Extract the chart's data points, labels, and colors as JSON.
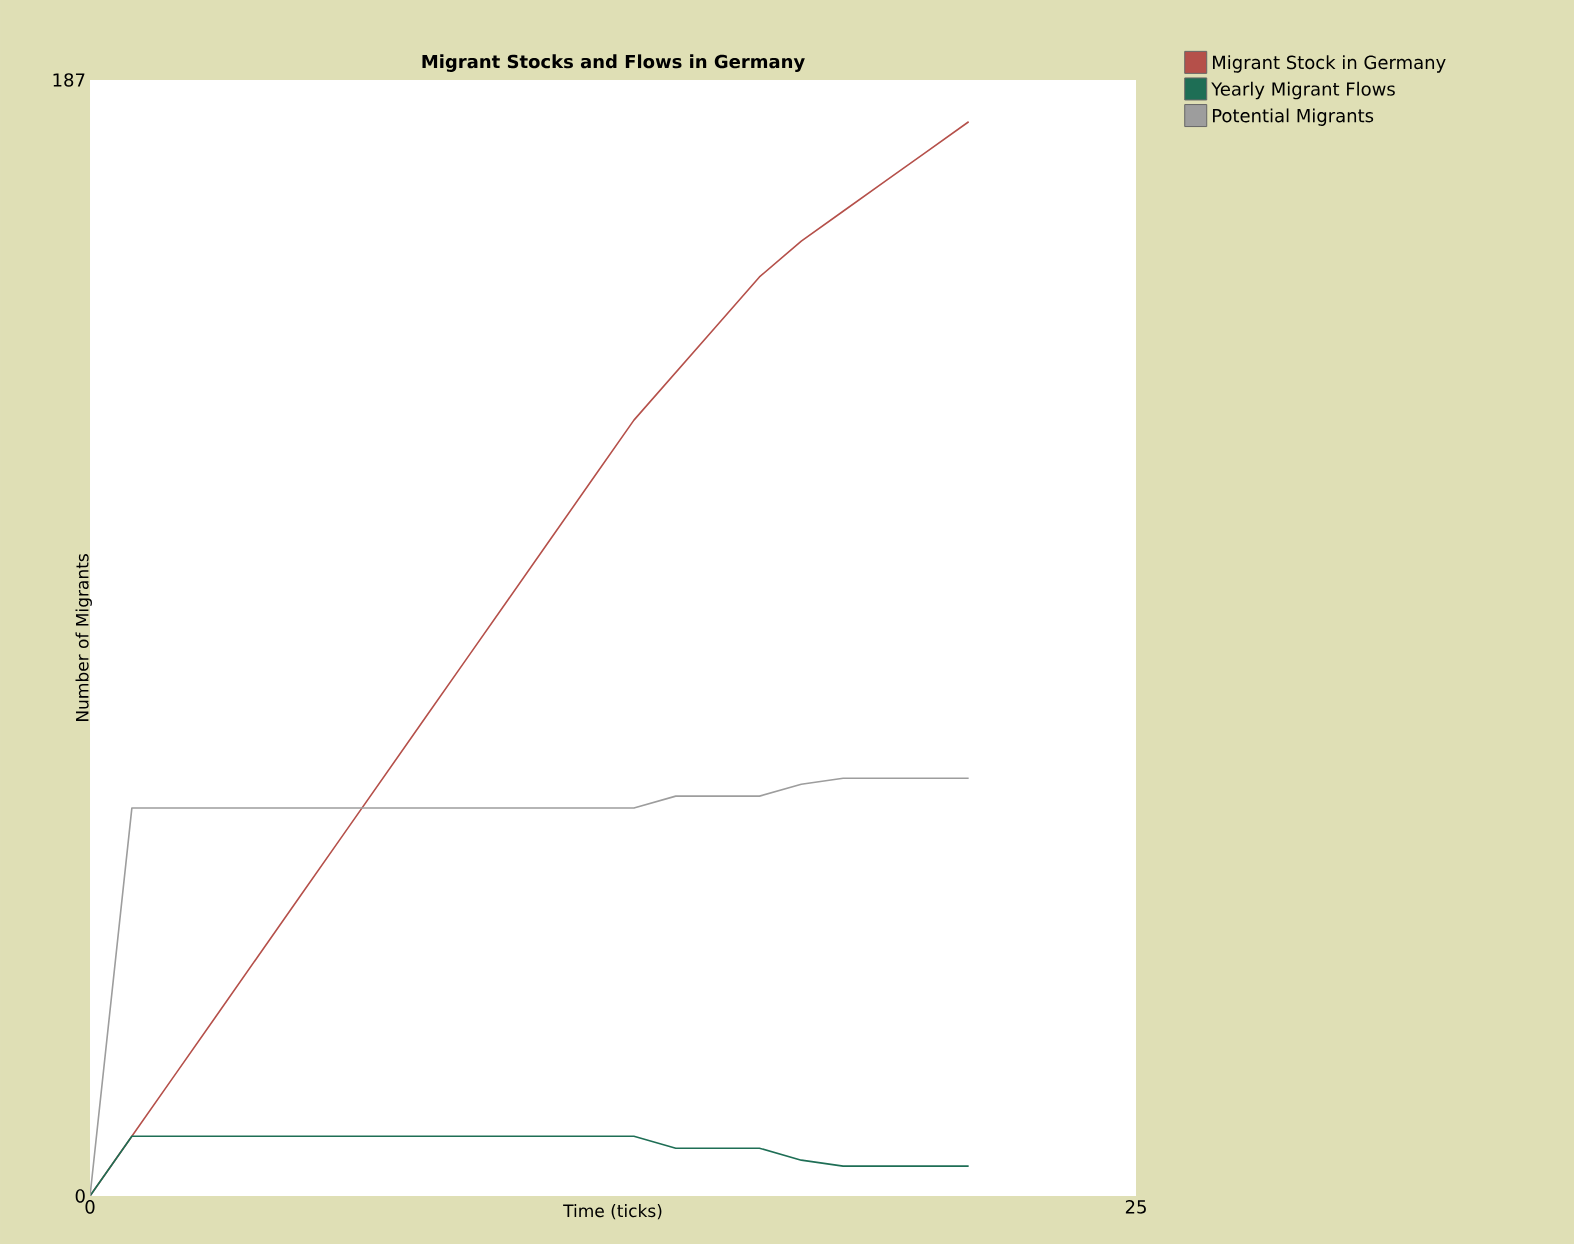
{
  "chart_data": {
    "type": "line",
    "title": "Migrant Stocks and Flows in Germany",
    "xlabel": "Time (ticks)",
    "ylabel": "Number of Migrants",
    "xlim": [
      0,
      25
    ],
    "ylim": [
      0,
      187
    ],
    "xticks": [
      0,
      25
    ],
    "yticks": [
      0,
      187
    ],
    "grid": false,
    "legend": "top right",
    "marker": "none",
    "line_style": "solid",
    "x": [
      0,
      1,
      2,
      3,
      4,
      5,
      6,
      7,
      8,
      9,
      10,
      11,
      12,
      13,
      14,
      15,
      16,
      17,
      18,
      19,
      20,
      21
    ],
    "series": [
      {
        "name": "Migrant Stock in Germany",
        "color": "#b5504a",
        "values": [
          0,
          10,
          20,
          30,
          40,
          50,
          60,
          70,
          80,
          90,
          100,
          110,
          120,
          130,
          138,
          146,
          154,
          160,
          165,
          170,
          175,
          180
        ]
      },
      {
        "name": "Yearly Migrant Flows",
        "color": "#1e6e55",
        "values": [
          0,
          10,
          10,
          10,
          10,
          10,
          10,
          10,
          10,
          10,
          10,
          10,
          10,
          10,
          8,
          8,
          8,
          6,
          5,
          5,
          5,
          5
        ]
      },
      {
        "name": "Potential Migrants",
        "color": "#9d9d9d",
        "values": [
          0,
          65,
          65,
          65,
          65,
          65,
          65,
          65,
          65,
          65,
          65,
          65,
          65,
          65,
          67,
          67,
          67,
          69,
          70,
          70,
          70,
          70
        ]
      }
    ]
  }
}
